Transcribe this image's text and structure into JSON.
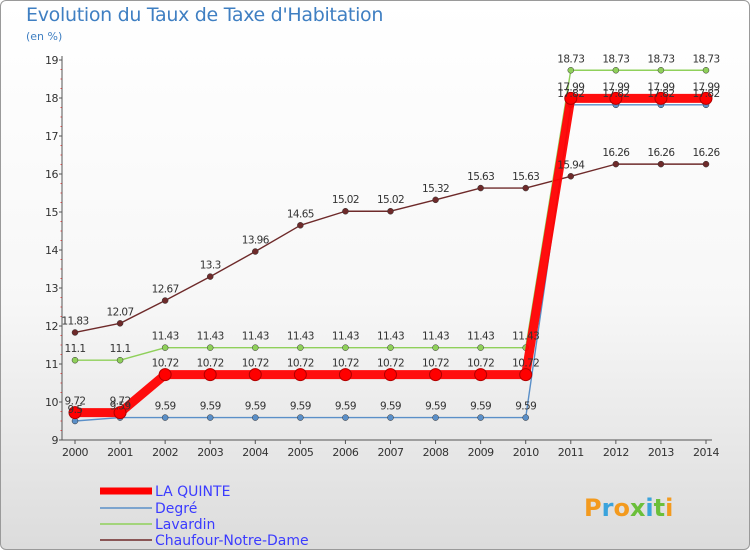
{
  "page": {
    "title": "Evolution du Taux de Taxe d'Habitation",
    "unit": "(en %)",
    "brand": "Proxiti",
    "brand_colors": [
      "#f39a1e",
      "#3aa3dc",
      "#f39a1e",
      "#6bbf3a",
      "#3aa3dc",
      "#6bbf3a",
      "#f39a1e"
    ]
  },
  "chart_data": {
    "type": "line",
    "title": "Evolution du Taux de Taxe d'Habitation",
    "ylabel": "(en %)",
    "x": [
      "2000",
      "2001",
      "2002",
      "2003",
      "2004",
      "2005",
      "2006",
      "2007",
      "2008",
      "2009",
      "2010",
      "2011",
      "2012",
      "2013",
      "2014"
    ],
    "ylim": [
      9,
      19
    ],
    "yticks": [
      "9",
      "10",
      "11",
      "12",
      "13",
      "14",
      "15",
      "16",
      "17",
      "18",
      "19"
    ],
    "grid": false,
    "legend_position": "bottom-left",
    "series": [
      {
        "name": "LA QUINTE",
        "color": "#ff0000",
        "values": [
          9.72,
          9.72,
          10.72,
          10.72,
          10.72,
          10.72,
          10.72,
          10.72,
          10.72,
          10.72,
          10.72,
          17.99,
          17.99,
          17.99,
          17.99
        ],
        "labels": [
          "9.72",
          "9.72",
          "10.72",
          "10.72",
          "10.72",
          "10.72",
          "10.72",
          "10.72",
          "10.72",
          "10.72",
          "10.72",
          "17.99",
          "17.99",
          "17.99",
          "17.99"
        ]
      },
      {
        "name": "Degré",
        "color": "#5a8fc8",
        "values": [
          9.5,
          9.59,
          9.59,
          9.59,
          9.59,
          9.59,
          9.59,
          9.59,
          9.59,
          9.59,
          9.59,
          17.82,
          17.82,
          17.82,
          17.82
        ],
        "labels": [
          "9.5",
          "9.59",
          "9.59",
          "9.59",
          "9.59",
          "9.59",
          "9.59",
          "9.59",
          "9.59",
          "9.59",
          "9.59",
          "17.82",
          "17.82",
          "17.82",
          "17.82"
        ]
      },
      {
        "name": "Lavardin",
        "color": "#8fd05a",
        "values": [
          11.1,
          11.1,
          11.43,
          11.43,
          11.43,
          11.43,
          11.43,
          11.43,
          11.43,
          11.43,
          11.43,
          18.73,
          18.73,
          18.73,
          18.73
        ],
        "labels": [
          "11.1",
          "11.1",
          "11.43",
          "11.43",
          "11.43",
          "11.43",
          "11.43",
          "11.43",
          "11.43",
          "11.43",
          "11.43",
          "18.73",
          "18.73",
          "18.73",
          "18.73"
        ]
      },
      {
        "name": "Chaufour-Notre-Dame",
        "color": "#6e2a2a",
        "values": [
          11.83,
          12.07,
          12.67,
          13.3,
          13.96,
          14.65,
          15.02,
          15.02,
          15.32,
          15.63,
          15.63,
          15.94,
          16.26,
          16.26,
          16.26
        ],
        "labels": [
          "11.83",
          "12.07",
          "12.67",
          "13.3",
          "13.96",
          "14.65",
          "15.02",
          "15.02",
          "15.32",
          "15.63",
          "15.63",
          "15.94",
          "16.26",
          "16.26",
          "16.26"
        ]
      }
    ]
  }
}
